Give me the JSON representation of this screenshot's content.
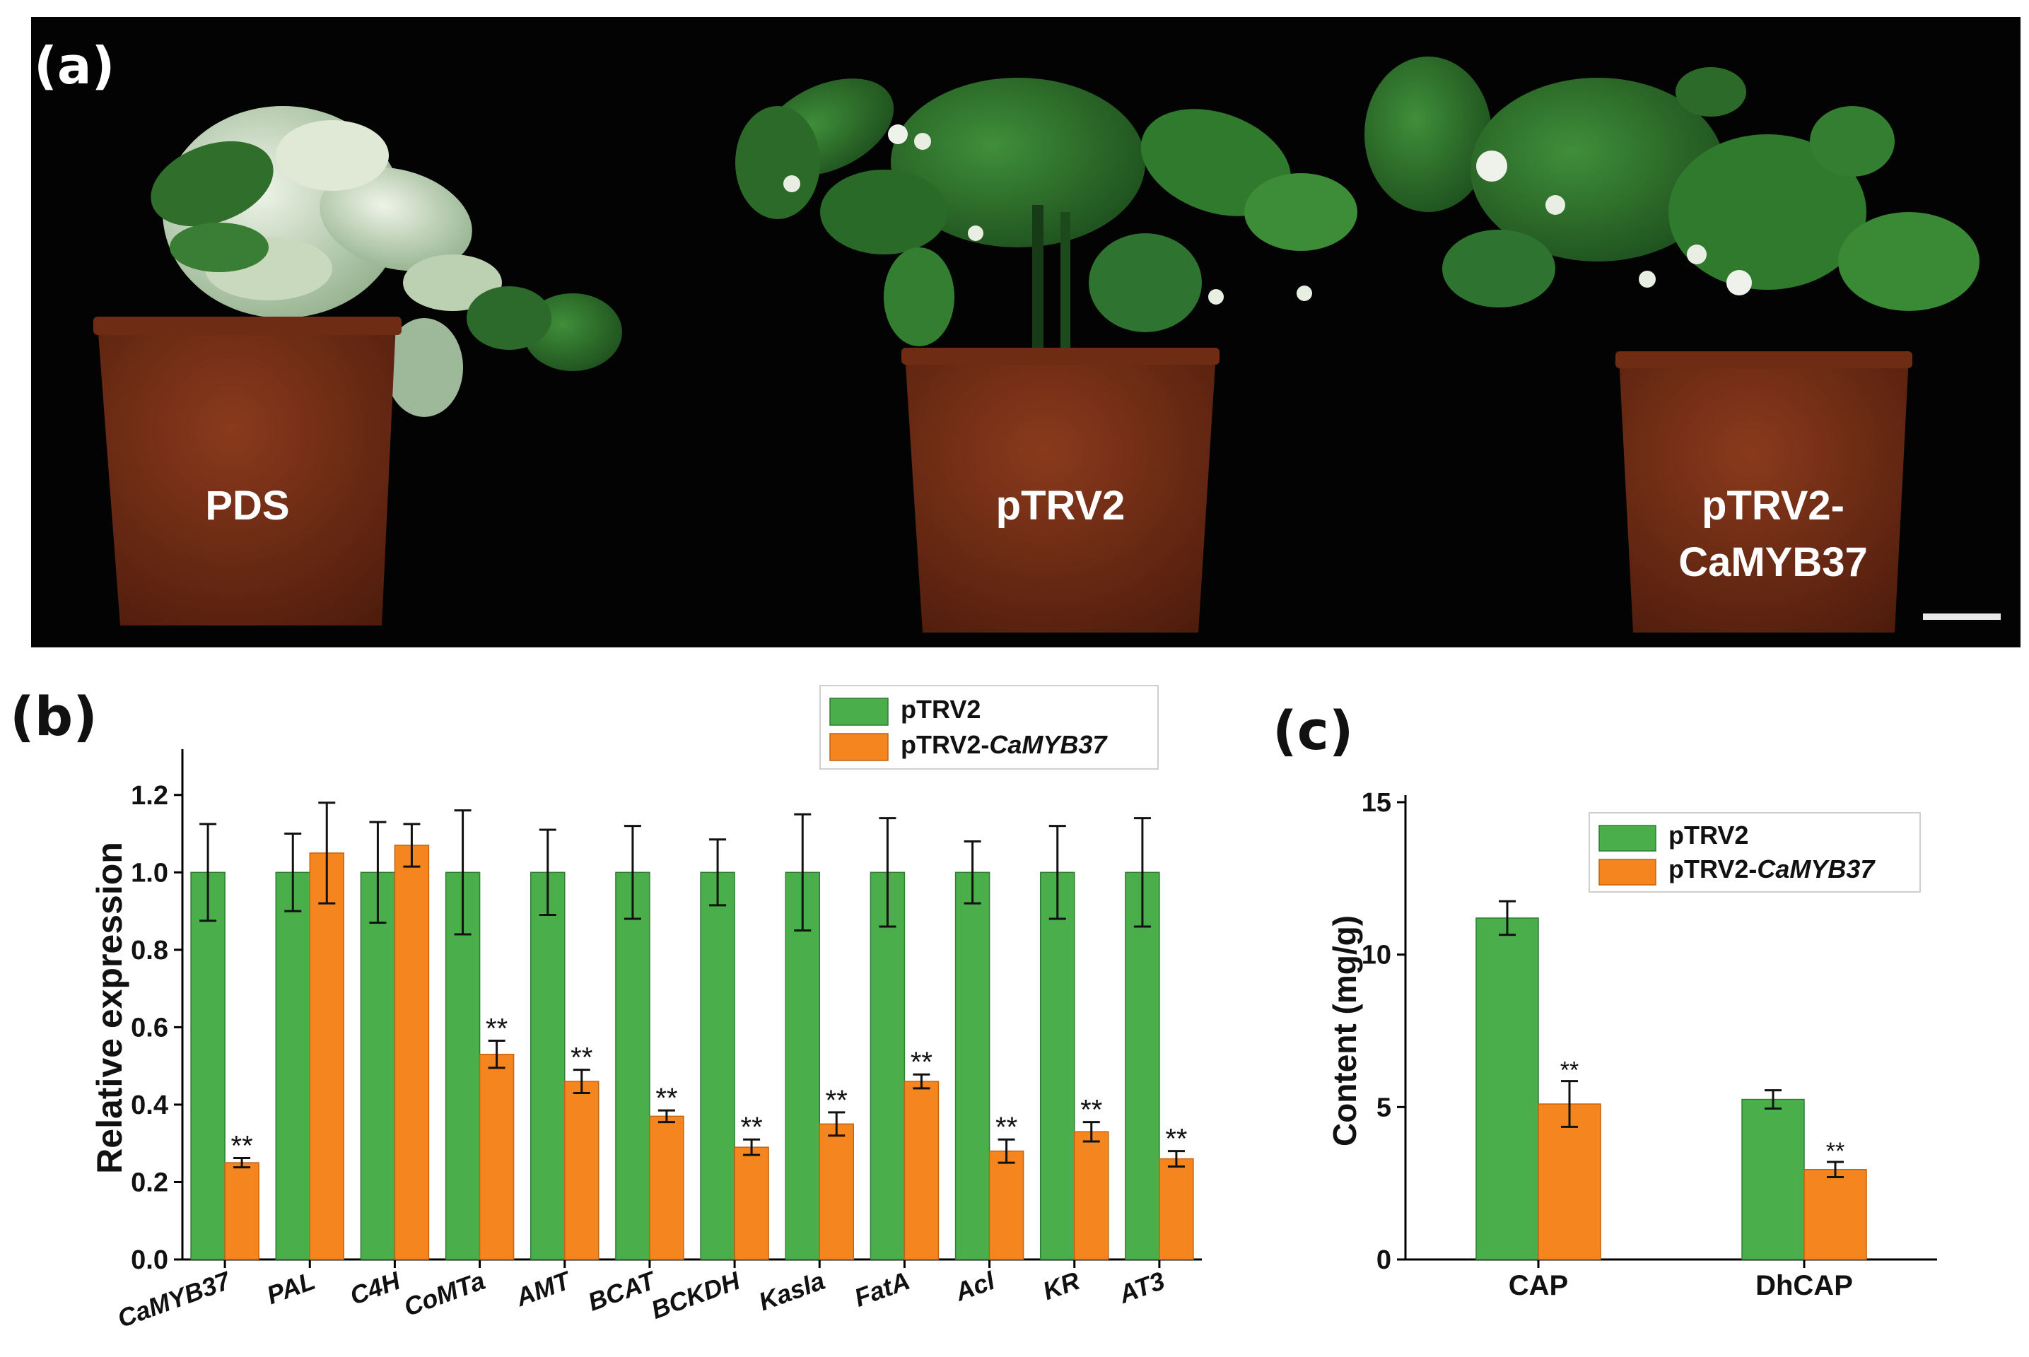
{
  "panel_a": {
    "label": "(a)",
    "plants": [
      {
        "label": "PDS"
      },
      {
        "label": "pTRV2"
      },
      {
        "label_line1": "pTRV2-",
        "label_line2": "CaMYB37"
      }
    ]
  },
  "panel_b_label": "(b)",
  "panel_c_label": "(c)",
  "colors": {
    "control": "#4aae4a",
    "treatment": "#f5851f",
    "bar_edge": "#2e7d32",
    "bar_edge_t": "#c46410"
  },
  "chart_data": [
    {
      "type": "bar",
      "panel": "b",
      "ylabel": "Relative expression",
      "xlabel": "",
      "ylim": [
        0,
        1.3
      ],
      "yticks": [
        "0.0",
        "0.2",
        "0.4",
        "0.6",
        "0.8",
        "1.0",
        "1.2"
      ],
      "categories": [
        "CaMYB37",
        "PAL",
        "C4H",
        "CoMTa",
        "AMT",
        "BCAT",
        "BCKDH",
        "Kasla",
        "FatA",
        "Acl",
        "KR",
        "AT3"
      ],
      "series": [
        {
          "name": "pTRV2",
          "values": [
            1.0,
            1.0,
            1.0,
            1.0,
            1.0,
            1.0,
            1.0,
            1.0,
            1.0,
            1.0,
            1.0,
            1.0
          ],
          "errors": [
            0.125,
            0.1,
            0.13,
            0.16,
            0.11,
            0.12,
            0.085,
            0.15,
            0.14,
            0.08,
            0.12,
            0.14
          ]
        },
        {
          "name_prefix": "pTRV2-",
          "name_italic": "CaMYB37",
          "values": [
            0.25,
            1.05,
            1.07,
            0.53,
            0.46,
            0.37,
            0.29,
            0.35,
            0.46,
            0.28,
            0.33,
            0.26
          ],
          "errors": [
            0.012,
            0.13,
            0.055,
            0.035,
            0.03,
            0.015,
            0.02,
            0.03,
            0.018,
            0.03,
            0.025,
            0.02
          ]
        }
      ],
      "significance": [
        "**",
        "",
        "",
        "**",
        "**",
        "**",
        "**",
        "**",
        "**",
        "**",
        "**",
        "**"
      ],
      "legend_position": "top-right"
    },
    {
      "type": "bar",
      "panel": "c",
      "ylabel": "Content (mg/g)",
      "xlabel": "",
      "ylim": [
        0,
        15
      ],
      "yticks": [
        "0",
        "5",
        "10",
        "15"
      ],
      "categories": [
        "CAP",
        "DhCAP"
      ],
      "series": [
        {
          "name": "pTRV2",
          "values": [
            11.2,
            5.25
          ],
          "errors": [
            0.55,
            0.3
          ]
        },
        {
          "name_prefix": "pTRV2-",
          "name_italic": "CaMYB37",
          "values": [
            5.1,
            2.95
          ],
          "errors": [
            0.75,
            0.25
          ]
        }
      ],
      "significance": [
        "**",
        "**"
      ],
      "legend_position": "top-right"
    }
  ]
}
